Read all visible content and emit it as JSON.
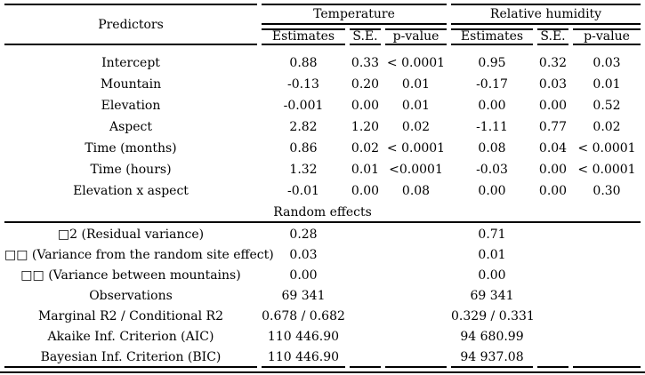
{
  "colors": {
    "background": "#ffffff",
    "text": "#000000",
    "rule": "#000000"
  },
  "table": {
    "header": {
      "predictors": "Predictors",
      "groups": [
        {
          "label": "Temperature",
          "subcols": [
            "Estimates",
            "S.E.",
            "p-value"
          ]
        },
        {
          "label": "Relative humidity",
          "subcols": [
            "Estimates",
            "S.E.",
            "p-value"
          ]
        }
      ]
    },
    "fixed_rows": [
      {
        "label": "Intercept",
        "t": [
          "0.88",
          "0.33",
          "< 0.0001"
        ],
        "rh": [
          "0.95",
          "0.32",
          "0.03"
        ]
      },
      {
        "label": "Mountain",
        "t": [
          "-0.13",
          "0.20",
          "0.01"
        ],
        "rh": [
          "-0.17",
          "0.03",
          "0.01"
        ]
      },
      {
        "label": "Elevation",
        "t": [
          "-0.001",
          "0.00",
          "0.01"
        ],
        "rh": [
          "0.00",
          "0.00",
          "0.52"
        ]
      },
      {
        "label": "Aspect",
        "t": [
          "2.82",
          "1.20",
          "0.02"
        ],
        "rh": [
          "-1.11",
          "0.77",
          "0.02"
        ]
      },
      {
        "label": "Time (months)",
        "t": [
          "0.86",
          "0.02",
          "< 0.0001"
        ],
        "rh": [
          "0.08",
          "0.04",
          "< 0.0001"
        ]
      },
      {
        "label": "Time (hours)",
        "t": [
          "1.32",
          "0.01",
          "<0.0001"
        ],
        "rh": [
          "-0.03",
          "0.00",
          "< 0.0001"
        ]
      },
      {
        "label": "Elevation x aspect",
        "t": [
          "-0.01",
          "0.00",
          "0.08"
        ],
        "rh": [
          "0.00",
          "0.00",
          "0.30"
        ]
      }
    ],
    "section_header": "Random effects",
    "summary_rows": [
      {
        "label": "□2 (Residual variance)",
        "t": "0.28",
        "rh": "0.71"
      },
      {
        "label": "□□ (Variance from the random site effect)",
        "t": "0.03",
        "rh": "0.01"
      },
      {
        "label": "□□ (Variance between mountains)",
        "t": "0.00",
        "rh": "0.00"
      },
      {
        "label": "Observations",
        "t": "69 341",
        "rh": "69 341"
      },
      {
        "label": "Marginal R2 / Conditional R2",
        "t": "0.678 / 0.682",
        "rh": "0.329 / 0.331"
      },
      {
        "label": "Akaike Inf. Criterion (AIC)",
        "t": "110 446.90",
        "rh": "94 680.99"
      },
      {
        "label": "Bayesian Inf. Criterion (BIC)",
        "t": "110 446.90",
        "rh": "94 937.08"
      }
    ]
  }
}
